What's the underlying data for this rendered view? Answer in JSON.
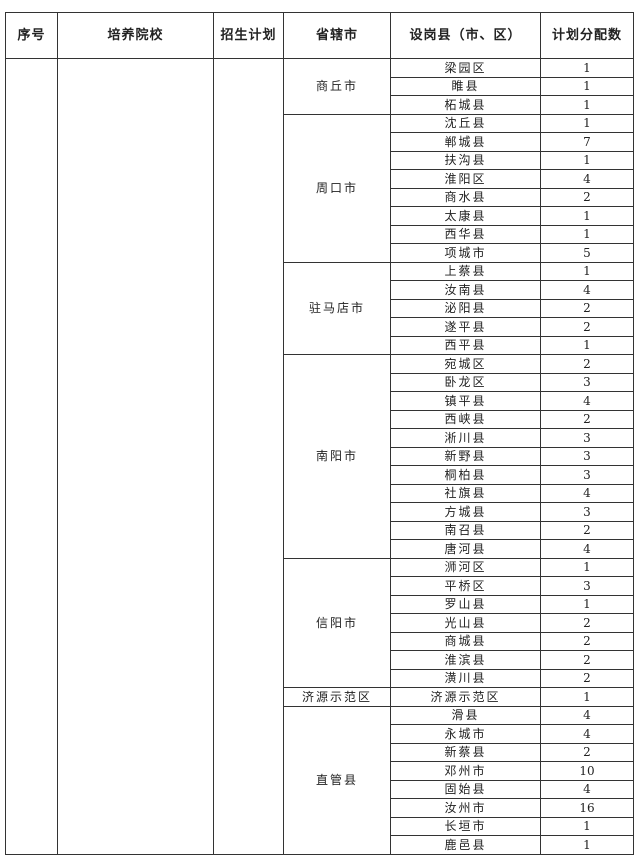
{
  "headers": [
    "序号",
    "培养院校",
    "招生计划",
    "省辖市",
    "设岗县（市、区）",
    "计划分配数"
  ],
  "groups": [
    {
      "city": "商丘市",
      "counties": [
        [
          "梁园区",
          "1"
        ],
        [
          "睢县",
          "1"
        ],
        [
          "柘城县",
          "1"
        ]
      ]
    },
    {
      "city": "周口市",
      "counties": [
        [
          "沈丘县",
          "1"
        ],
        [
          "郸城县",
          "7"
        ],
        [
          "扶沟县",
          "1"
        ],
        [
          "淮阳区",
          "4"
        ],
        [
          "商水县",
          "2"
        ],
        [
          "太康县",
          "1"
        ],
        [
          "西华县",
          "1"
        ],
        [
          "项城市",
          "5"
        ]
      ]
    },
    {
      "city": "驻马店市",
      "counties": [
        [
          "上蔡县",
          "1"
        ],
        [
          "汝南县",
          "4"
        ],
        [
          "泌阳县",
          "2"
        ],
        [
          "遂平县",
          "2"
        ],
        [
          "西平县",
          "1"
        ]
      ]
    },
    {
      "city": "南阳市",
      "counties": [
        [
          "宛城区",
          "2"
        ],
        [
          "卧龙区",
          "3"
        ],
        [
          "镇平县",
          "4"
        ],
        [
          "西峡县",
          "2"
        ],
        [
          "淅川县",
          "3"
        ],
        [
          "新野县",
          "3"
        ],
        [
          "桐柏县",
          "3"
        ],
        [
          "社旗县",
          "4"
        ],
        [
          "方城县",
          "3"
        ],
        [
          "南召县",
          "2"
        ],
        [
          "唐河县",
          "4"
        ]
      ]
    },
    {
      "city": "信阳市",
      "counties": [
        [
          "浉河区",
          "1"
        ],
        [
          "平桥区",
          "3"
        ],
        [
          "罗山县",
          "1"
        ],
        [
          "光山县",
          "2"
        ],
        [
          "商城县",
          "2"
        ],
        [
          "淮滨县",
          "2"
        ],
        [
          "潢川县",
          "2"
        ]
      ]
    },
    {
      "city": "济源示范区",
      "counties": [
        [
          "济源示范区",
          "1"
        ]
      ]
    },
    {
      "city": "直管县",
      "counties": [
        [
          "滑县",
          "4"
        ],
        [
          "永城市",
          "4"
        ],
        [
          "新蔡县",
          "2"
        ],
        [
          "邓州市",
          "10"
        ],
        [
          "固始县",
          "4"
        ],
        [
          "汝州市",
          "16"
        ],
        [
          "长垣市",
          "1"
        ],
        [
          "鹿邑县",
          "1"
        ]
      ]
    }
  ]
}
